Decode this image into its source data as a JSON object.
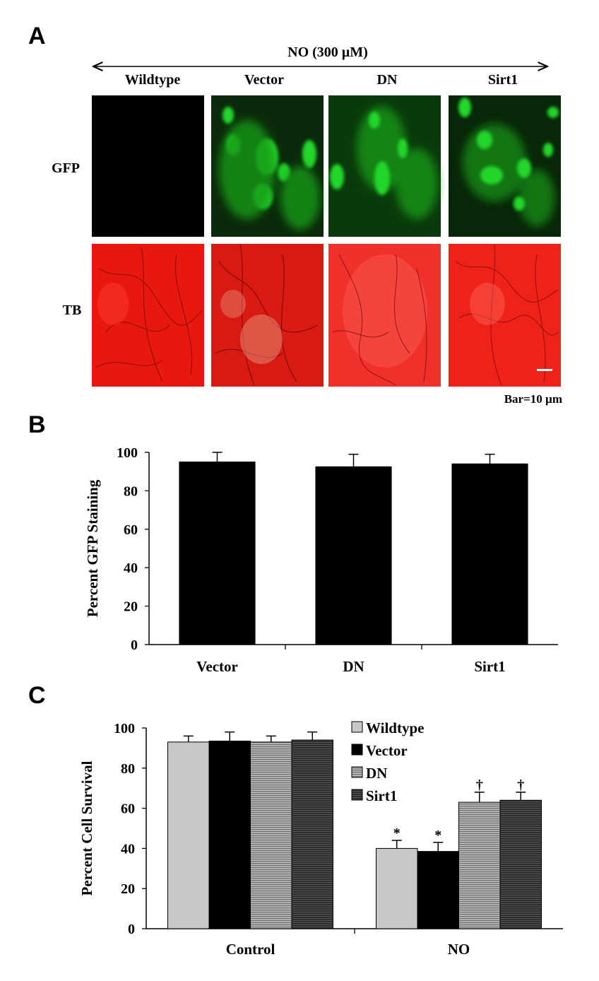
{
  "panel_a": {
    "letter": "A",
    "treatment_label": "NO (300 µM)",
    "columns": [
      "Wildtype",
      "Vector",
      "DN",
      "Sirt1"
    ],
    "rows": [
      "GFP",
      "TB"
    ],
    "scale_bar": "Bar=10 µm",
    "gfp_color": "#22d62a",
    "tb_color": "#e8180f"
  },
  "panel_b": {
    "letter": "B"
  },
  "panel_c": {
    "letter": "C"
  },
  "chart_data": [
    {
      "type": "bar",
      "panel": "B",
      "categories": [
        "Vector",
        "DN",
        "Sirt1"
      ],
      "values": [
        95,
        92.5,
        94
      ],
      "errors": [
        5,
        6.5,
        5
      ],
      "ylabel": "Percent GFP Staining",
      "xlabel": "",
      "ylim": [
        0,
        100
      ],
      "yticks": [
        0,
        20,
        40,
        60,
        80,
        100
      ],
      "bar_color": "#000000",
      "grid": false
    },
    {
      "type": "bar",
      "panel": "C",
      "categories": [
        "Control",
        "NO"
      ],
      "ylabel": "Percent Cell Survival",
      "xlabel": "",
      "ylim": [
        0,
        100
      ],
      "yticks": [
        0,
        20,
        40,
        60,
        80,
        100
      ],
      "legend_position": "top-right",
      "grid": false,
      "series": [
        {
          "name": "Wildtype",
          "values": [
            93,
            40
          ],
          "errors": [
            3,
            4
          ],
          "color": "#c8c8c8",
          "pattern": "solid",
          "marks": [
            "",
            "*"
          ]
        },
        {
          "name": "Vector",
          "values": [
            93.5,
            38.5
          ],
          "errors": [
            4.5,
            4.5
          ],
          "color": "#000000",
          "pattern": "solid",
          "marks": [
            "",
            "*"
          ]
        },
        {
          "name": "DN",
          "values": [
            93,
            63
          ],
          "errors": [
            3,
            5
          ],
          "color": "#9a9a9a",
          "pattern": "horizontal-stripes",
          "marks": [
            "",
            "†"
          ]
        },
        {
          "name": "Sirt1",
          "values": [
            94,
            64
          ],
          "errors": [
            4,
            4
          ],
          "color": "#3a3a3a",
          "pattern": "solid-dark",
          "marks": [
            "",
            "†"
          ]
        }
      ]
    }
  ]
}
